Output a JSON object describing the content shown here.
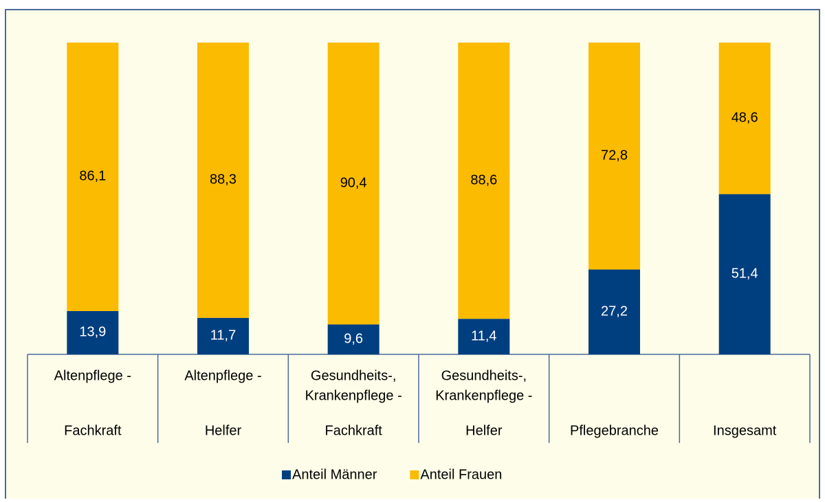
{
  "chart_data": {
    "type": "stacked_bar",
    "categories": [
      [
        "Altenpflege -",
        "Fachkraft"
      ],
      [
        "Altenpflege -",
        "Helfer"
      ],
      [
        "Gesundheits-,",
        "Krankenpflege -",
        "Fachkraft"
      ],
      [
        "Gesundheits-,",
        "Krankenpflege -",
        "Helfer"
      ],
      [
        "Pflegebranche"
      ],
      [
        "Insgesamt"
      ]
    ],
    "series": [
      {
        "name": "Anteil Männer",
        "color": "#003f7f",
        "values": [
          13.9,
          11.7,
          9.6,
          11.4,
          27.2,
          51.4
        ],
        "value_labels": [
          "13,9",
          "11,7",
          "9,6",
          "11,4",
          "27,2",
          "51,4"
        ]
      },
      {
        "name": "Anteil Frauen",
        "color": "#fbbb00",
        "values": [
          86.1,
          88.3,
          90.4,
          88.6,
          72.8,
          48.6
        ],
        "value_labels": [
          "86,1",
          "88,3",
          "90,4",
          "88,6",
          "72,8",
          "48,6"
        ]
      }
    ],
    "ylim": [
      0,
      100
    ]
  }
}
